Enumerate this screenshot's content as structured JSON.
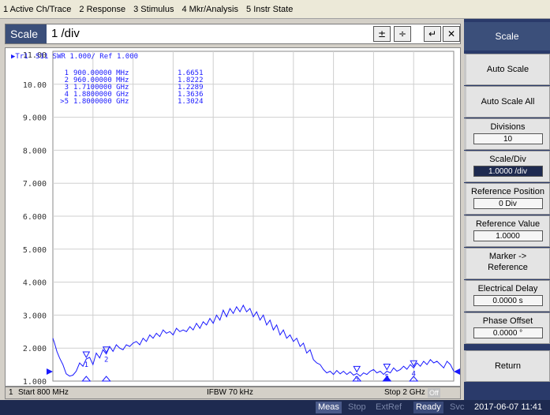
{
  "menu": [
    "1 Active Ch/Trace",
    "2 Response",
    "3 Stimulus",
    "4 Mkr/Analysis",
    "5 Instr State"
  ],
  "entry": {
    "label": "Scale",
    "value": "1 /div"
  },
  "trace": {
    "header_badge": "Tr1",
    "header_text": "S11  SWR 1.000/ Ref 1.000",
    "color": "#1a1aff"
  },
  "markers": [
    {
      "id": "1",
      "freq": "900.00000 MHz",
      "value": "1.6651"
    },
    {
      "id": "2",
      "freq": "960.00000 MHz",
      "value": "1.8222"
    },
    {
      "id": "3",
      "freq": "1.7100000 GHz",
      "value": "1.2289"
    },
    {
      "id": "4",
      "freq": "1.8800000 GHz",
      "value": "1.3636"
    },
    {
      "id": ">5",
      "freq": "1.8000000 GHz",
      "value": "1.3024"
    }
  ],
  "chart_data": {
    "type": "line",
    "ylim": [
      1.0,
      11.0
    ],
    "y_ticks": [
      "11.00",
      "10.00",
      "9.000",
      "8.000",
      "7.000",
      "6.000",
      "5.000",
      "4.000",
      "3.000",
      "2.000",
      "1.000"
    ],
    "x_start_mhz": 800,
    "x_stop_mhz": 2000,
    "series": [
      {
        "x_mhz": [
          800,
          805,
          812,
          820,
          830,
          840,
          850,
          860,
          870,
          880,
          890,
          900,
          910,
          920,
          930,
          940,
          950,
          960,
          970,
          980,
          990,
          1000,
          1010,
          1020,
          1030,
          1040,
          1050,
          1060,
          1070,
          1080,
          1090,
          1100,
          1110,
          1120,
          1130,
          1140,
          1150,
          1160,
          1170,
          1180,
          1190,
          1200,
          1210,
          1220,
          1230,
          1240,
          1250,
          1260,
          1270,
          1280,
          1290,
          1300,
          1310,
          1320,
          1330,
          1340,
          1350,
          1360,
          1370,
          1380,
          1390,
          1400,
          1410,
          1420,
          1430,
          1440,
          1450,
          1460,
          1470,
          1480,
          1490,
          1500,
          1510,
          1520,
          1530,
          1540,
          1550,
          1560,
          1570,
          1580,
          1590,
          1600,
          1610,
          1620,
          1630,
          1640,
          1650,
          1660,
          1670,
          1680,
          1690,
          1700,
          1710,
          1720,
          1730,
          1740,
          1750,
          1760,
          1770,
          1780,
          1790,
          1800,
          1810,
          1820,
          1830,
          1840,
          1850,
          1860,
          1870,
          1880,
          1890,
          1900,
          1910,
          1920,
          1930,
          1940,
          1950,
          1960,
          1970,
          1980,
          1990,
          2000
        ],
        "y": [
          2.3,
          2.15,
          1.9,
          1.7,
          1.5,
          1.22,
          1.15,
          1.18,
          1.3,
          1.55,
          1.45,
          1.67,
          1.72,
          1.5,
          1.85,
          1.7,
          1.95,
          1.82,
          2.05,
          1.9,
          2.1,
          2.0,
          1.95,
          2.1,
          2.05,
          2.15,
          2.2,
          2.1,
          2.3,
          2.2,
          2.4,
          2.3,
          2.45,
          2.35,
          2.55,
          2.45,
          2.5,
          2.4,
          2.6,
          2.5,
          2.55,
          2.5,
          2.65,
          2.55,
          2.75,
          2.6,
          2.8,
          2.7,
          2.9,
          2.75,
          3.0,
          2.85,
          3.15,
          2.95,
          3.2,
          3.05,
          3.25,
          3.1,
          3.3,
          3.1,
          3.2,
          2.95,
          3.1,
          2.85,
          3.0,
          2.7,
          2.85,
          2.55,
          2.7,
          2.4,
          2.55,
          2.3,
          2.4,
          2.2,
          2.3,
          2.05,
          2.15,
          1.85,
          1.95,
          1.65,
          1.55,
          1.5,
          1.35,
          1.25,
          1.3,
          1.2,
          1.32,
          1.22,
          1.3,
          1.2,
          1.28,
          1.18,
          1.23,
          1.15,
          1.25,
          1.2,
          1.3,
          1.35,
          1.25,
          1.3,
          1.2,
          1.3,
          1.25,
          1.4,
          1.3,
          1.35,
          1.45,
          1.36,
          1.5,
          1.4,
          1.55,
          1.45,
          1.6,
          1.5,
          1.65,
          1.55,
          1.6,
          1.5,
          1.4,
          1.6,
          1.5,
          1.3
        ]
      }
    ]
  },
  "status": {
    "channel": "1",
    "start": "Start 800 MHz",
    "ifbw": "IFBW 70 kHz",
    "stop": "Stop 2 GHz",
    "off": "Off"
  },
  "bottom": {
    "meas": "Meas",
    "stop": "Stop",
    "extref": "ExtRef",
    "ready": "Ready",
    "svc": "Svc",
    "datetime": "2017-06-07 11:41"
  },
  "softkeys": {
    "title": "Scale",
    "auto_scale": "Auto Scale",
    "auto_scale_all": "Auto Scale All",
    "divisions": {
      "label": "Divisions",
      "value": "10"
    },
    "scale_div": {
      "label": "Scale/Div",
      "value": "1.0000 /div"
    },
    "ref_position": {
      "label": "Reference Position",
      "value": "0 Div"
    },
    "ref_value": {
      "label": "Reference Value",
      "value": "1.0000"
    },
    "marker_ref": {
      "line1": "Marker ->",
      "line2": "Reference"
    },
    "elec_delay": {
      "label": "Electrical Delay",
      "value": "0.0000 s"
    },
    "phase_offset": {
      "label": "Phase Offset",
      "value": "0.0000 °"
    },
    "return": "Return"
  }
}
